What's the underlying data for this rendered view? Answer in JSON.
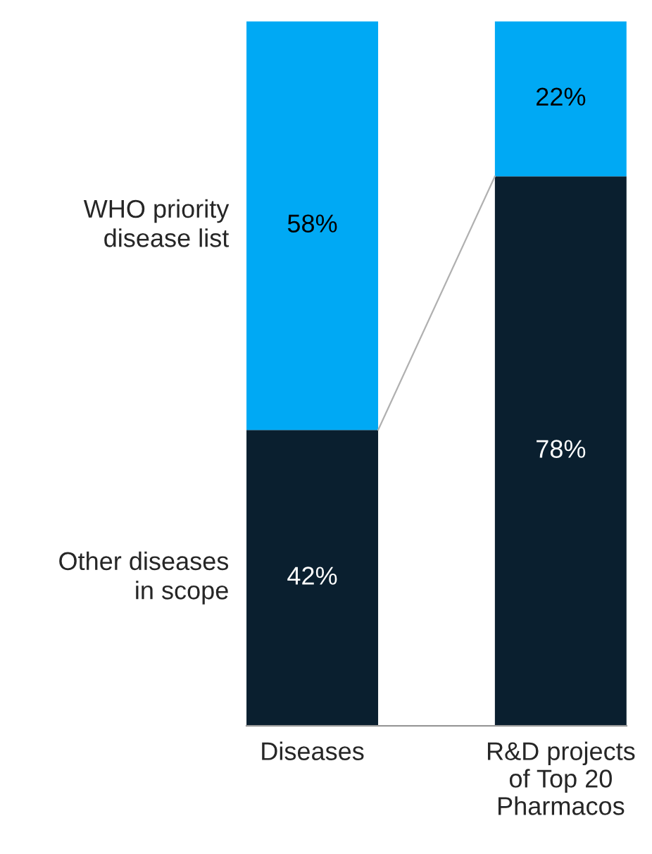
{
  "chart_data": {
    "type": "bar",
    "stacked": true,
    "data_labels": true,
    "legend": false,
    "tick_labels": "x",
    "categories": [
      "Diseases",
      "R&D projects\nof Top 20\nPharmacos"
    ],
    "series": [
      {
        "name": "Other diseases\nin scope",
        "color": "#0a1f2f",
        "values": [
          42,
          78
        ],
        "value_labels": [
          "42%",
          "78%"
        ]
      },
      {
        "name": "WHO priority\ndisease list",
        "color": "#00a9f4",
        "values": [
          58,
          22
        ],
        "value_labels": [
          "58%",
          "22%"
        ]
      }
    ]
  }
}
